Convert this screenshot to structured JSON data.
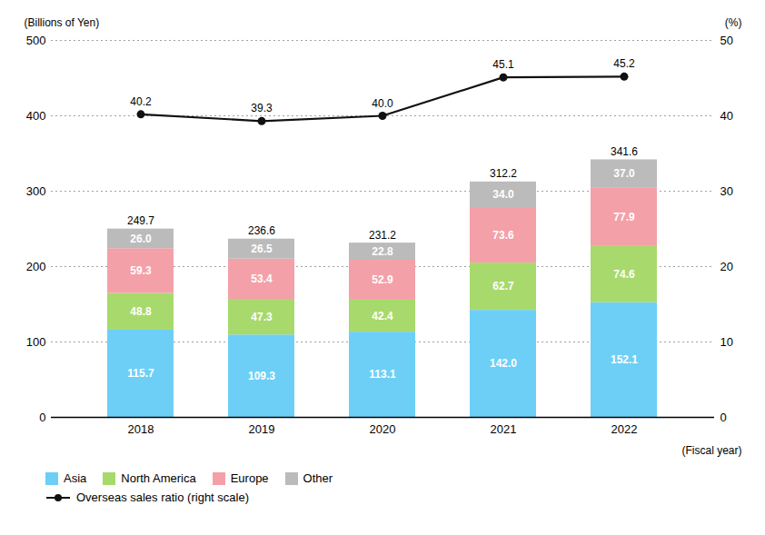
{
  "chart_data": {
    "type": "bar",
    "stacked": true,
    "ylabel": "(Billions of Yen)",
    "y2label": "(%)",
    "xlabel": "(Fiscal year)",
    "categories": [
      "2018",
      "2019",
      "2020",
      "2021",
      "2022"
    ],
    "series": [
      {
        "name": "Asia",
        "color": "#6DCFF6",
        "values": [
          115.7,
          109.3,
          113.1,
          142.0,
          152.1
        ],
        "value_labels": [
          "115.7",
          "109.3",
          "113.1",
          "142.0",
          "152.1"
        ]
      },
      {
        "name": "North America",
        "color": "#A8D96C",
        "values": [
          48.8,
          47.3,
          42.4,
          62.7,
          74.6
        ]
      },
      {
        "name": "Europe",
        "color": "#F4A0A8",
        "values": [
          59.3,
          53.4,
          52.9,
          73.6,
          77.9
        ]
      },
      {
        "name": "Other",
        "color": "#BBBBBB",
        "values": [
          26.0,
          26.5,
          22.8,
          34.0,
          37.0
        ],
        "value_labels": [
          "26.0",
          "26.5",
          "22.8",
          "34.0",
          "37.0"
        ]
      },
      {
        "name": "Overseas sales ratio (right scale)",
        "type": "line",
        "axis": "y2",
        "color": "#111111",
        "marker": "circle",
        "values": [
          40.2,
          39.3,
          40.0,
          45.1,
          45.2
        ],
        "value_labels": [
          "40.2",
          "39.3",
          "40.0",
          "45.1",
          "45.2"
        ]
      }
    ],
    "totals": [
      249.7,
      236.6,
      231.2,
      312.2,
      341.6
    ],
    "ylim": [
      0,
      500
    ],
    "yticks": [
      0,
      100,
      200,
      300,
      400,
      500
    ],
    "y2lim": [
      0,
      50
    ],
    "y2ticks": [
      0,
      10,
      20,
      30,
      40,
      50
    ],
    "grid": true,
    "data_labels": true,
    "legend": "bottom"
  }
}
